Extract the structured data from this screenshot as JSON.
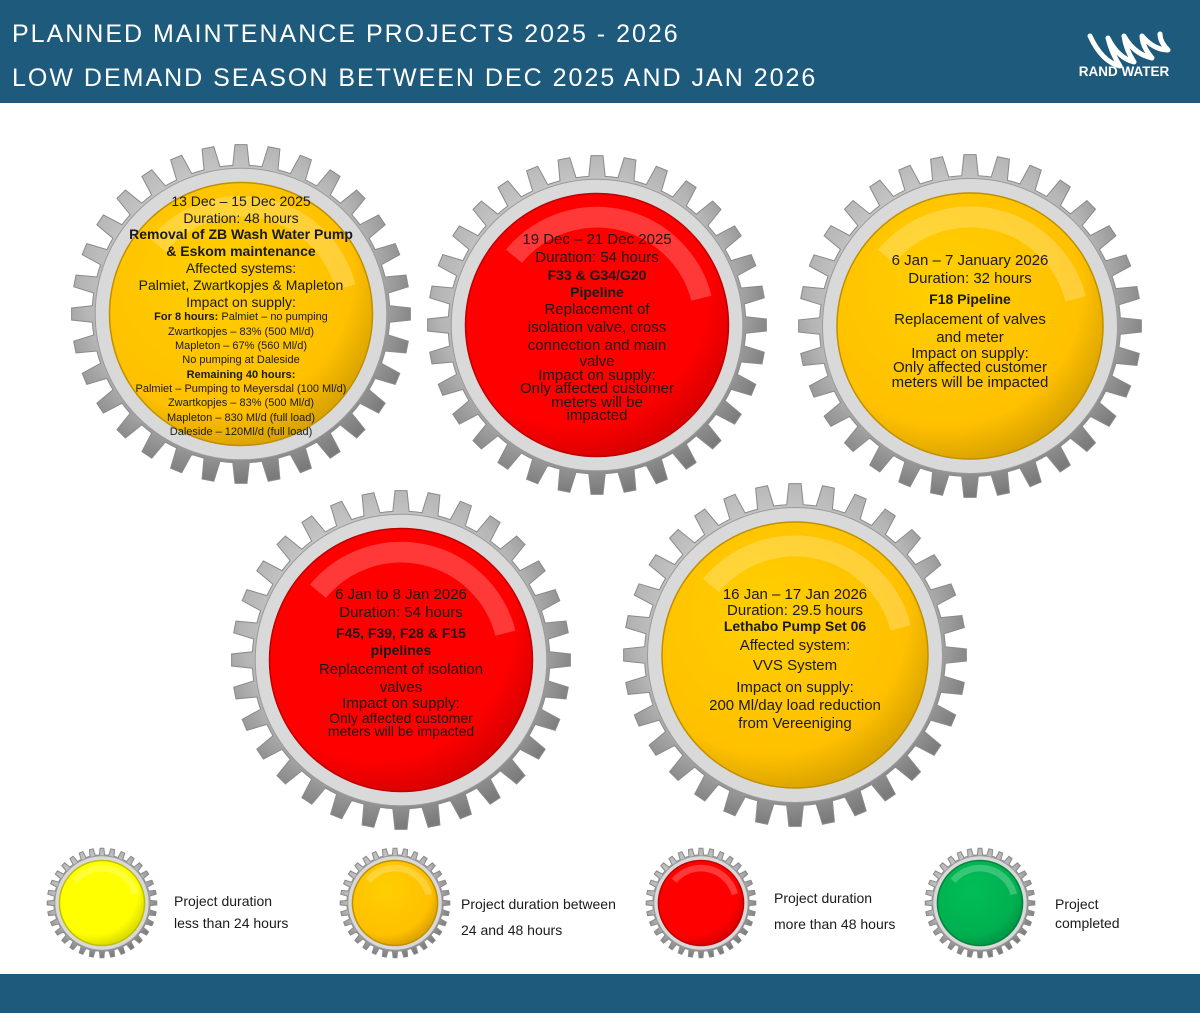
{
  "header": {
    "title_line1": "PLANNED MAINTENANCE PROJECTS 2025 - 2026",
    "title_line2": "LOW DEMAND SEASON BETWEEN DEC 2025 AND JAN 2026",
    "logo_text": "RAND WATER"
  },
  "colors": {
    "header_bg": "#1d5a7c",
    "yellow": "#ffff00",
    "amber": "#ffc000",
    "red": "#ff0000",
    "green": "#00b050",
    "gear_silver": "#b8b8b8"
  },
  "projects": [
    {
      "color": "amber",
      "dates": "13 Dec – 15 Dec 2025",
      "duration": "Duration: 48 hours",
      "name_line1": "Removal of ZB Wash Water Pump",
      "name_line2": "& Eskom maintenance",
      "affected_label": "Affected systems:",
      "affected": "Palmiet, Zwartkopjes & Mapleton",
      "impact_label": "Impact on supply:",
      "period1_label": "For 8 hours:",
      "period1_first": "Palmiet – no pumping",
      "period1_items": [
        "Zwartkopjes – 83% (500 Ml/d)",
        "Mapleton – 67% (560 Ml/d)",
        "No pumping at Daleside"
      ],
      "period2_label": "Remaining 40 hours:",
      "period2_items": [
        "Palmiet – Pumping to Meyersdal (100 Ml/d)",
        "Zwartkopjes – 83% (500 Ml/d)",
        "Mapleton – 830 Ml/d (full load)",
        "Daleside – 120Ml/d (full load)"
      ]
    },
    {
      "color": "red",
      "dates": "19 Dec – 21 Dec 2025",
      "duration": "Duration: 54 hours",
      "name_line1": "F33 & G34/G20",
      "name_line2": "Pipeline",
      "description": [
        "Replacement of",
        "isolation valve, cross",
        "connection and main",
        "valve"
      ],
      "impact_label": "Impact on supply:",
      "impact": [
        "Only affected customer",
        "meters will be",
        "impacted"
      ]
    },
    {
      "color": "amber",
      "dates": "6 Jan – 7 January 2026",
      "duration": "Duration: 32 hours",
      "name_line1": "F18 Pipeline",
      "description": [
        "Replacement of valves",
        "and meter"
      ],
      "impact_label": "Impact on supply:",
      "impact": [
        "Only affected customer",
        "meters will be impacted"
      ]
    },
    {
      "color": "red",
      "dates": "6 Jan to 8 Jan 2026",
      "duration": "Duration: 54 hours",
      "name_line1": "F45, F39, F28 & F15",
      "name_line2": "pipelines",
      "description": [
        "Replacement of isolation",
        "valves"
      ],
      "impact_label": "Impact on supply:",
      "impact": [
        "Only affected customer",
        "meters will be impacted"
      ]
    },
    {
      "color": "amber",
      "dates": "16 Jan – 17 Jan 2026",
      "duration": "Duration: 29.5 hours",
      "name_line1": "Lethabo Pump Set 06",
      "affected_label": "Affected system:",
      "affected": "VVS System",
      "impact_label": "Impact on supply:",
      "impact": [
        "200 Ml/day load reduction",
        "from Vereeniging"
      ]
    }
  ],
  "legend": [
    {
      "color": "yellow",
      "line1": "Project duration",
      "line2": "less than 24 hours"
    },
    {
      "color": "amber",
      "line1": "Project duration between",
      "line2": "24 and 48 hours"
    },
    {
      "color": "red",
      "line1": "Project duration",
      "line2": "more than 48 hours"
    },
    {
      "color": "green",
      "line1": "Project",
      "line2": "completed"
    }
  ]
}
